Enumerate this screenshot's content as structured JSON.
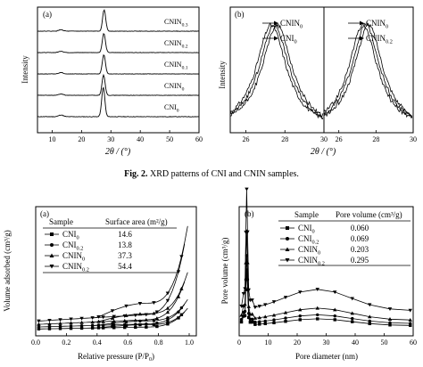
{
  "figure_caption": {
    "label": "Fig. 2.",
    "text": "XRD patterns of CNI and CNIN samples."
  },
  "chart_data": [
    {
      "panel": "(a)",
      "type": "line",
      "xlabel": "2θ / (°)",
      "ylabel": "Intensity",
      "xlim": [
        5,
        60
      ],
      "xticks": [
        10,
        20,
        30,
        40,
        50,
        60
      ],
      "series": [
        {
          "name": "CNI",
          "sub": "0",
          "offset": 0,
          "peaks": [
            {
              "x": 13.0,
              "h": 0.06
            },
            {
              "x": 27.4,
              "h": 1.0
            }
          ]
        },
        {
          "name": "CNIN",
          "sub": "0",
          "offset": 1,
          "peaks": [
            {
              "x": 13.0,
              "h": 0.06
            },
            {
              "x": 27.5,
              "h": 0.9
            }
          ]
        },
        {
          "name": "CNIN",
          "sub": "0.1",
          "offset": 2,
          "peaks": [
            {
              "x": 13.0,
              "h": 0.06
            },
            {
              "x": 27.6,
              "h": 0.85
            }
          ]
        },
        {
          "name": "CNIN",
          "sub": "0.2",
          "offset": 3,
          "peaks": [
            {
              "x": 13.0,
              "h": 0.06
            },
            {
              "x": 27.6,
              "h": 0.85
            }
          ]
        },
        {
          "name": "CNIN",
          "sub": "0.3",
          "offset": 4,
          "peaks": [
            {
              "x": 13.0,
              "h": 0.06
            },
            {
              "x": 27.7,
              "h": 0.95
            }
          ]
        }
      ]
    },
    {
      "panel": "(b)",
      "type": "line",
      "xlabel": "2θ / (°)",
      "ylabel": "Intensity",
      "broken_axis": true,
      "left_segment": {
        "xlim": [
          25.2,
          30
        ],
        "xticks": [
          26,
          28,
          30
        ]
      },
      "right_segment": {
        "xlim": [
          25.2,
          30
        ],
        "xticks": [
          26,
          28,
          30
        ]
      },
      "legend": [
        {
          "name": "CNIN",
          "sub": "0"
        },
        {
          "name": "CNI",
          "sub": "0"
        },
        {
          "name": "CNIN",
          "sub": "0"
        },
        {
          "name": "CNIN",
          "sub": "0.2"
        }
      ],
      "series": [
        {
          "name": "CNI",
          "sub": "0",
          "peak": 27.3
        },
        {
          "name": "CNIN",
          "sub": "0",
          "peak": 27.45
        },
        {
          "name": "CNIN",
          "sub": "0.2",
          "peak": 27.6
        }
      ]
    },
    {
      "panel": "(a)",
      "type": "line",
      "xlabel": "Relative pressure (P/P",
      "xlabel_sub": "0",
      "xlabel_end": ")",
      "ylabel": "Volume adsorbed (cm³/g)",
      "xlim": [
        0,
        1.0
      ],
      "xticks": [
        0.0,
        0.2,
        0.4,
        0.6,
        0.8,
        1.0
      ],
      "table": {
        "headers": [
          "Sample",
          "Surface area (m²/g)"
        ],
        "rows": [
          {
            "name": "CNI",
            "sub": "0",
            "marker": "square",
            "value": "14.6"
          },
          {
            "name": "CNI",
            "sub": "0.2",
            "marker": "circle",
            "value": "13.8"
          },
          {
            "name": "CNIN",
            "sub": "0",
            "marker": "triangle-up",
            "value": "37.3"
          },
          {
            "name": "CNIN",
            "sub": "0.2",
            "marker": "triangle-down",
            "value": "54.4"
          }
        ]
      },
      "series": [
        {
          "marker": "square",
          "base": 0.05,
          "top": 0.22
        },
        {
          "marker": "circle",
          "base": 0.08,
          "top": 0.3
        },
        {
          "marker": "triangle-up",
          "base": 0.12,
          "top": 0.55
        },
        {
          "marker": "triangle-down",
          "base": 0.17,
          "top": 0.98
        }
      ]
    },
    {
      "panel": "(b)",
      "type": "line",
      "xlabel": "Pore diameter (nm)",
      "ylabel": "Pore volume (cm³/g)",
      "xlim": [
        0,
        60
      ],
      "xticks": [
        0,
        10,
        20,
        30,
        40,
        50,
        60
      ],
      "table": {
        "headers": [
          "Sample",
          "Pore volume (cm³/g)"
        ],
        "rows": [
          {
            "name": "CNI",
            "sub": "0",
            "marker": "square",
            "value": "0.060"
          },
          {
            "name": "CNI",
            "sub": "0.2",
            "marker": "circle",
            "value": "0.069"
          },
          {
            "name": "CNIN",
            "sub": "0",
            "marker": "triangle-up",
            "value": "0.203"
          },
          {
            "name": "CNIN",
            "sub": "0.2",
            "marker": "triangle-down",
            "value": "0.295"
          }
        ]
      },
      "series": [
        {
          "marker": "square",
          "plateau": 0.1,
          "spike": 0.45
        },
        {
          "marker": "circle",
          "plateau": 0.13,
          "spike": 0.55
        },
        {
          "marker": "triangle-up",
          "plateau": 0.18,
          "spike": 0.72
        },
        {
          "marker": "triangle-down",
          "plateau": 0.32,
          "spike": 0.98
        }
      ]
    }
  ]
}
